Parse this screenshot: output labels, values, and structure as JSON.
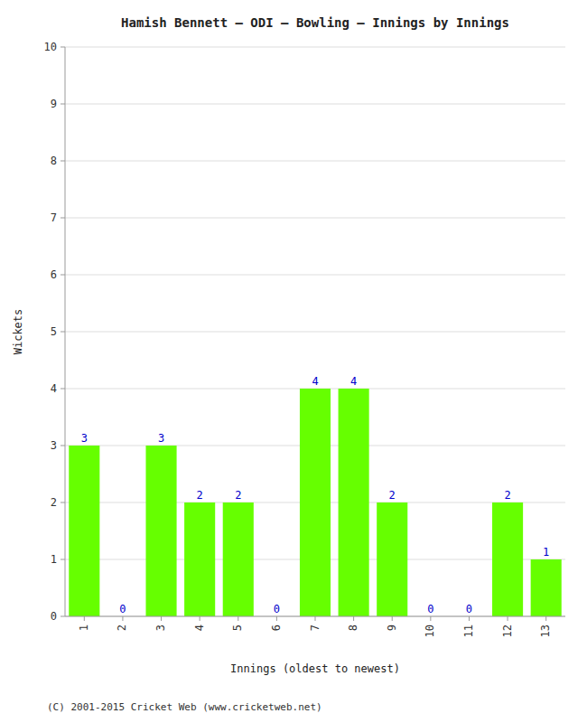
{
  "chart_data": {
    "type": "bar",
    "title": "Hamish Bennett – ODI – Bowling – Innings by Innings",
    "x_label": "Innings (oldest to newest)",
    "y_label": "Wickets",
    "categories": [
      "1",
      "2",
      "3",
      "4",
      "5",
      "6",
      "7",
      "8",
      "9",
      "10",
      "11",
      "12",
      "13"
    ],
    "values": [
      3,
      0,
      3,
      2,
      2,
      0,
      4,
      4,
      2,
      0,
      0,
      2,
      1
    ],
    "color": "#66ff00",
    "ylim": [
      0,
      10
    ],
    "yticks": [
      0,
      1,
      2,
      3,
      4,
      5,
      6,
      7,
      8,
      9,
      10
    ],
    "grid": true,
    "data_labels": true,
    "annotations": [
      "(C) 2001-2015 Cricket Web (www.cricketweb.net)"
    ]
  }
}
